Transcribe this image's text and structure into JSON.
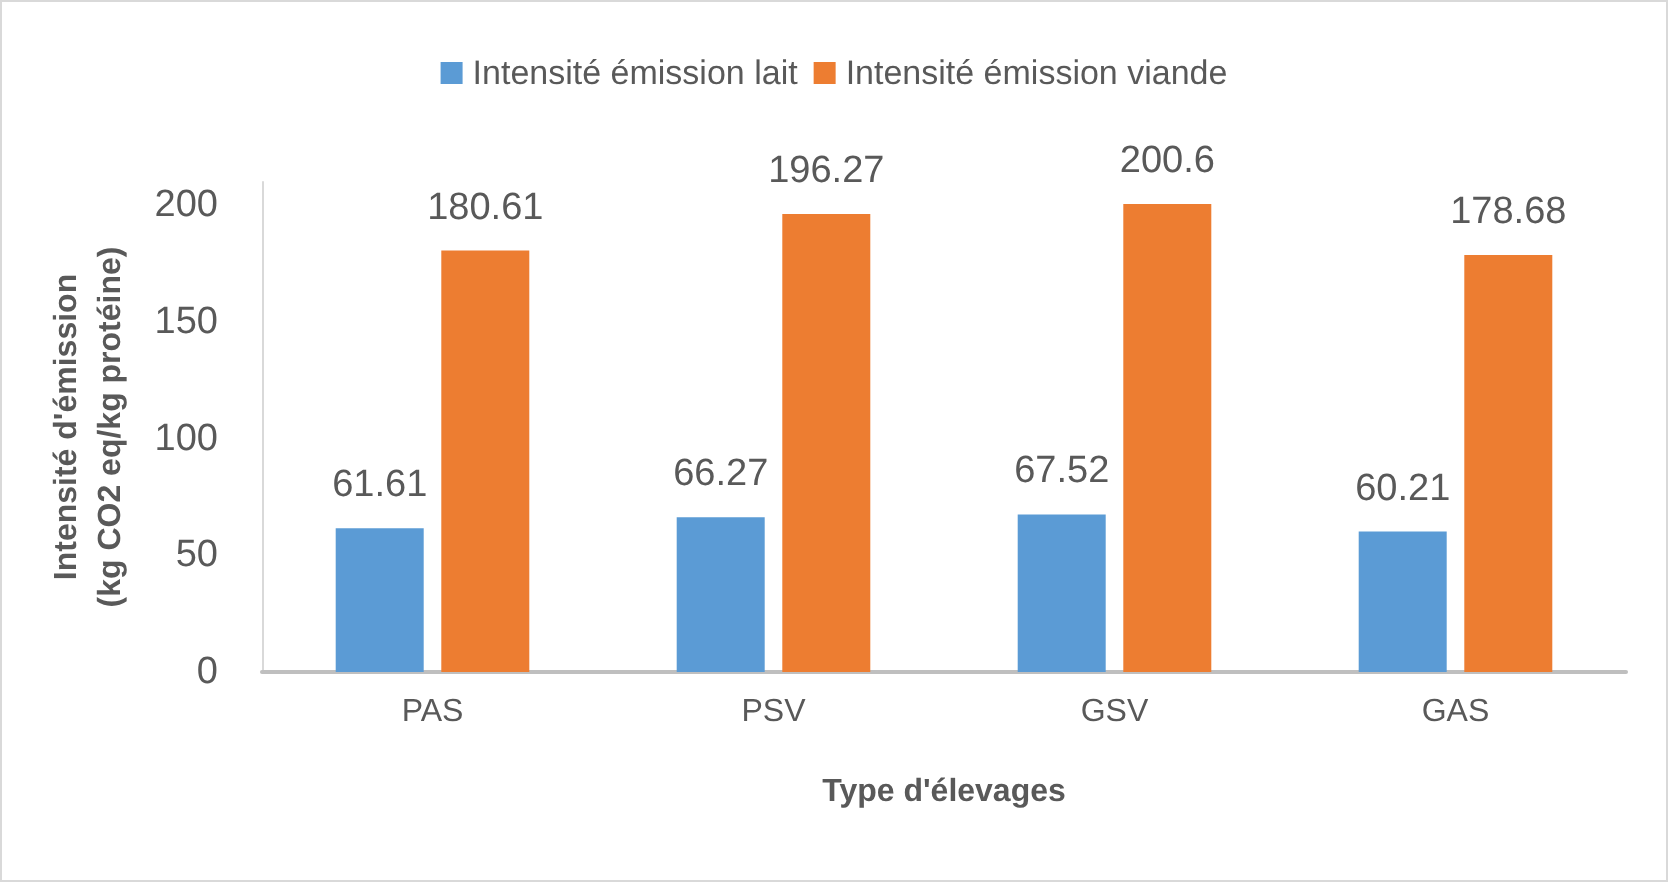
{
  "chart_data": {
    "type": "bar",
    "xlabel": "Type d'élevages",
    "ylabel": "Intensité d'émission (kg CO2 eq/kg protéine)",
    "categories": [
      "PAS",
      "PSV",
      "GSV",
      "GAS"
    ],
    "series": [
      {
        "name": "Intensité émission lait",
        "color": "#5b9bd5",
        "values": [
          61.61,
          66.27,
          67.52,
          60.21
        ]
      },
      {
        "name": "Intensité émission viande",
        "color": "#ed7d31",
        "values": [
          180.61,
          196.27,
          200.6,
          178.68
        ]
      }
    ],
    "ylim": [
      0,
      210
    ],
    "yticks": [
      0,
      50,
      100,
      150,
      200
    ],
    "data_labels": true,
    "grid": false,
    "legend": "top"
  }
}
